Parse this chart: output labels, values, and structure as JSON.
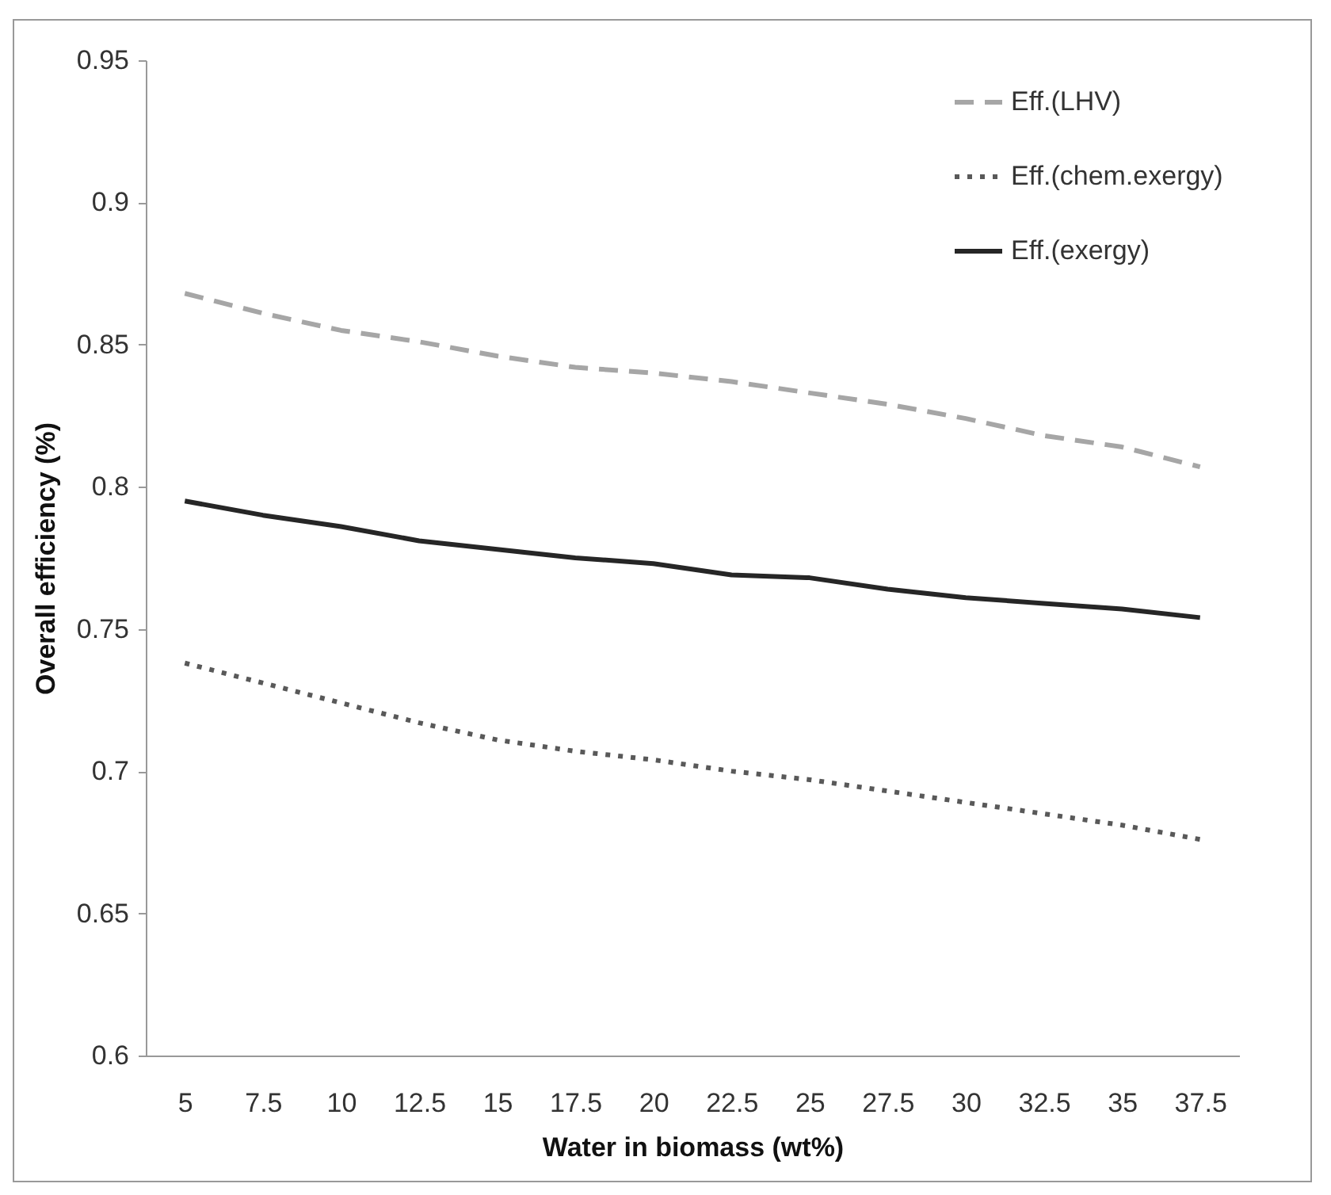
{
  "chart_data": {
    "type": "line",
    "xlabel": "Water in biomass (wt%)",
    "ylabel": "Overall efficiency (%)",
    "categories": [
      "5",
      "7.5",
      "10",
      "12.5",
      "15",
      "17.5",
      "20",
      "22.5",
      "25",
      "27.5",
      "30",
      "32.5",
      "35",
      "37.5"
    ],
    "series": [
      {
        "name": "Eff.(LHV)",
        "color": "#a6a6a6",
        "line_style": "dashed",
        "values": [
          0.868,
          0.861,
          0.855,
          0.851,
          0.846,
          0.842,
          0.84,
          0.837,
          0.833,
          0.829,
          0.824,
          0.818,
          0.814,
          0.807
        ]
      },
      {
        "name": "Eff.(chem.exergy)",
        "color": "#595959",
        "line_style": "dotted",
        "values": [
          0.738,
          0.731,
          0.724,
          0.717,
          0.711,
          0.707,
          0.704,
          0.7,
          0.697,
          0.693,
          0.689,
          0.685,
          0.681,
          0.676
        ]
      },
      {
        "name": "Eff.(exergy)",
        "color": "#262626",
        "line_style": "solid",
        "values": [
          0.795,
          0.79,
          0.786,
          0.781,
          0.778,
          0.775,
          0.773,
          0.769,
          0.768,
          0.764,
          0.761,
          0.759,
          0.757,
          0.754
        ]
      }
    ],
    "ylim": [
      0.6,
      0.95
    ],
    "yticks": [
      0.6,
      0.65,
      0.7,
      0.75,
      0.8,
      0.85,
      0.9,
      0.95
    ],
    "grid": false,
    "legend": "top right"
  }
}
